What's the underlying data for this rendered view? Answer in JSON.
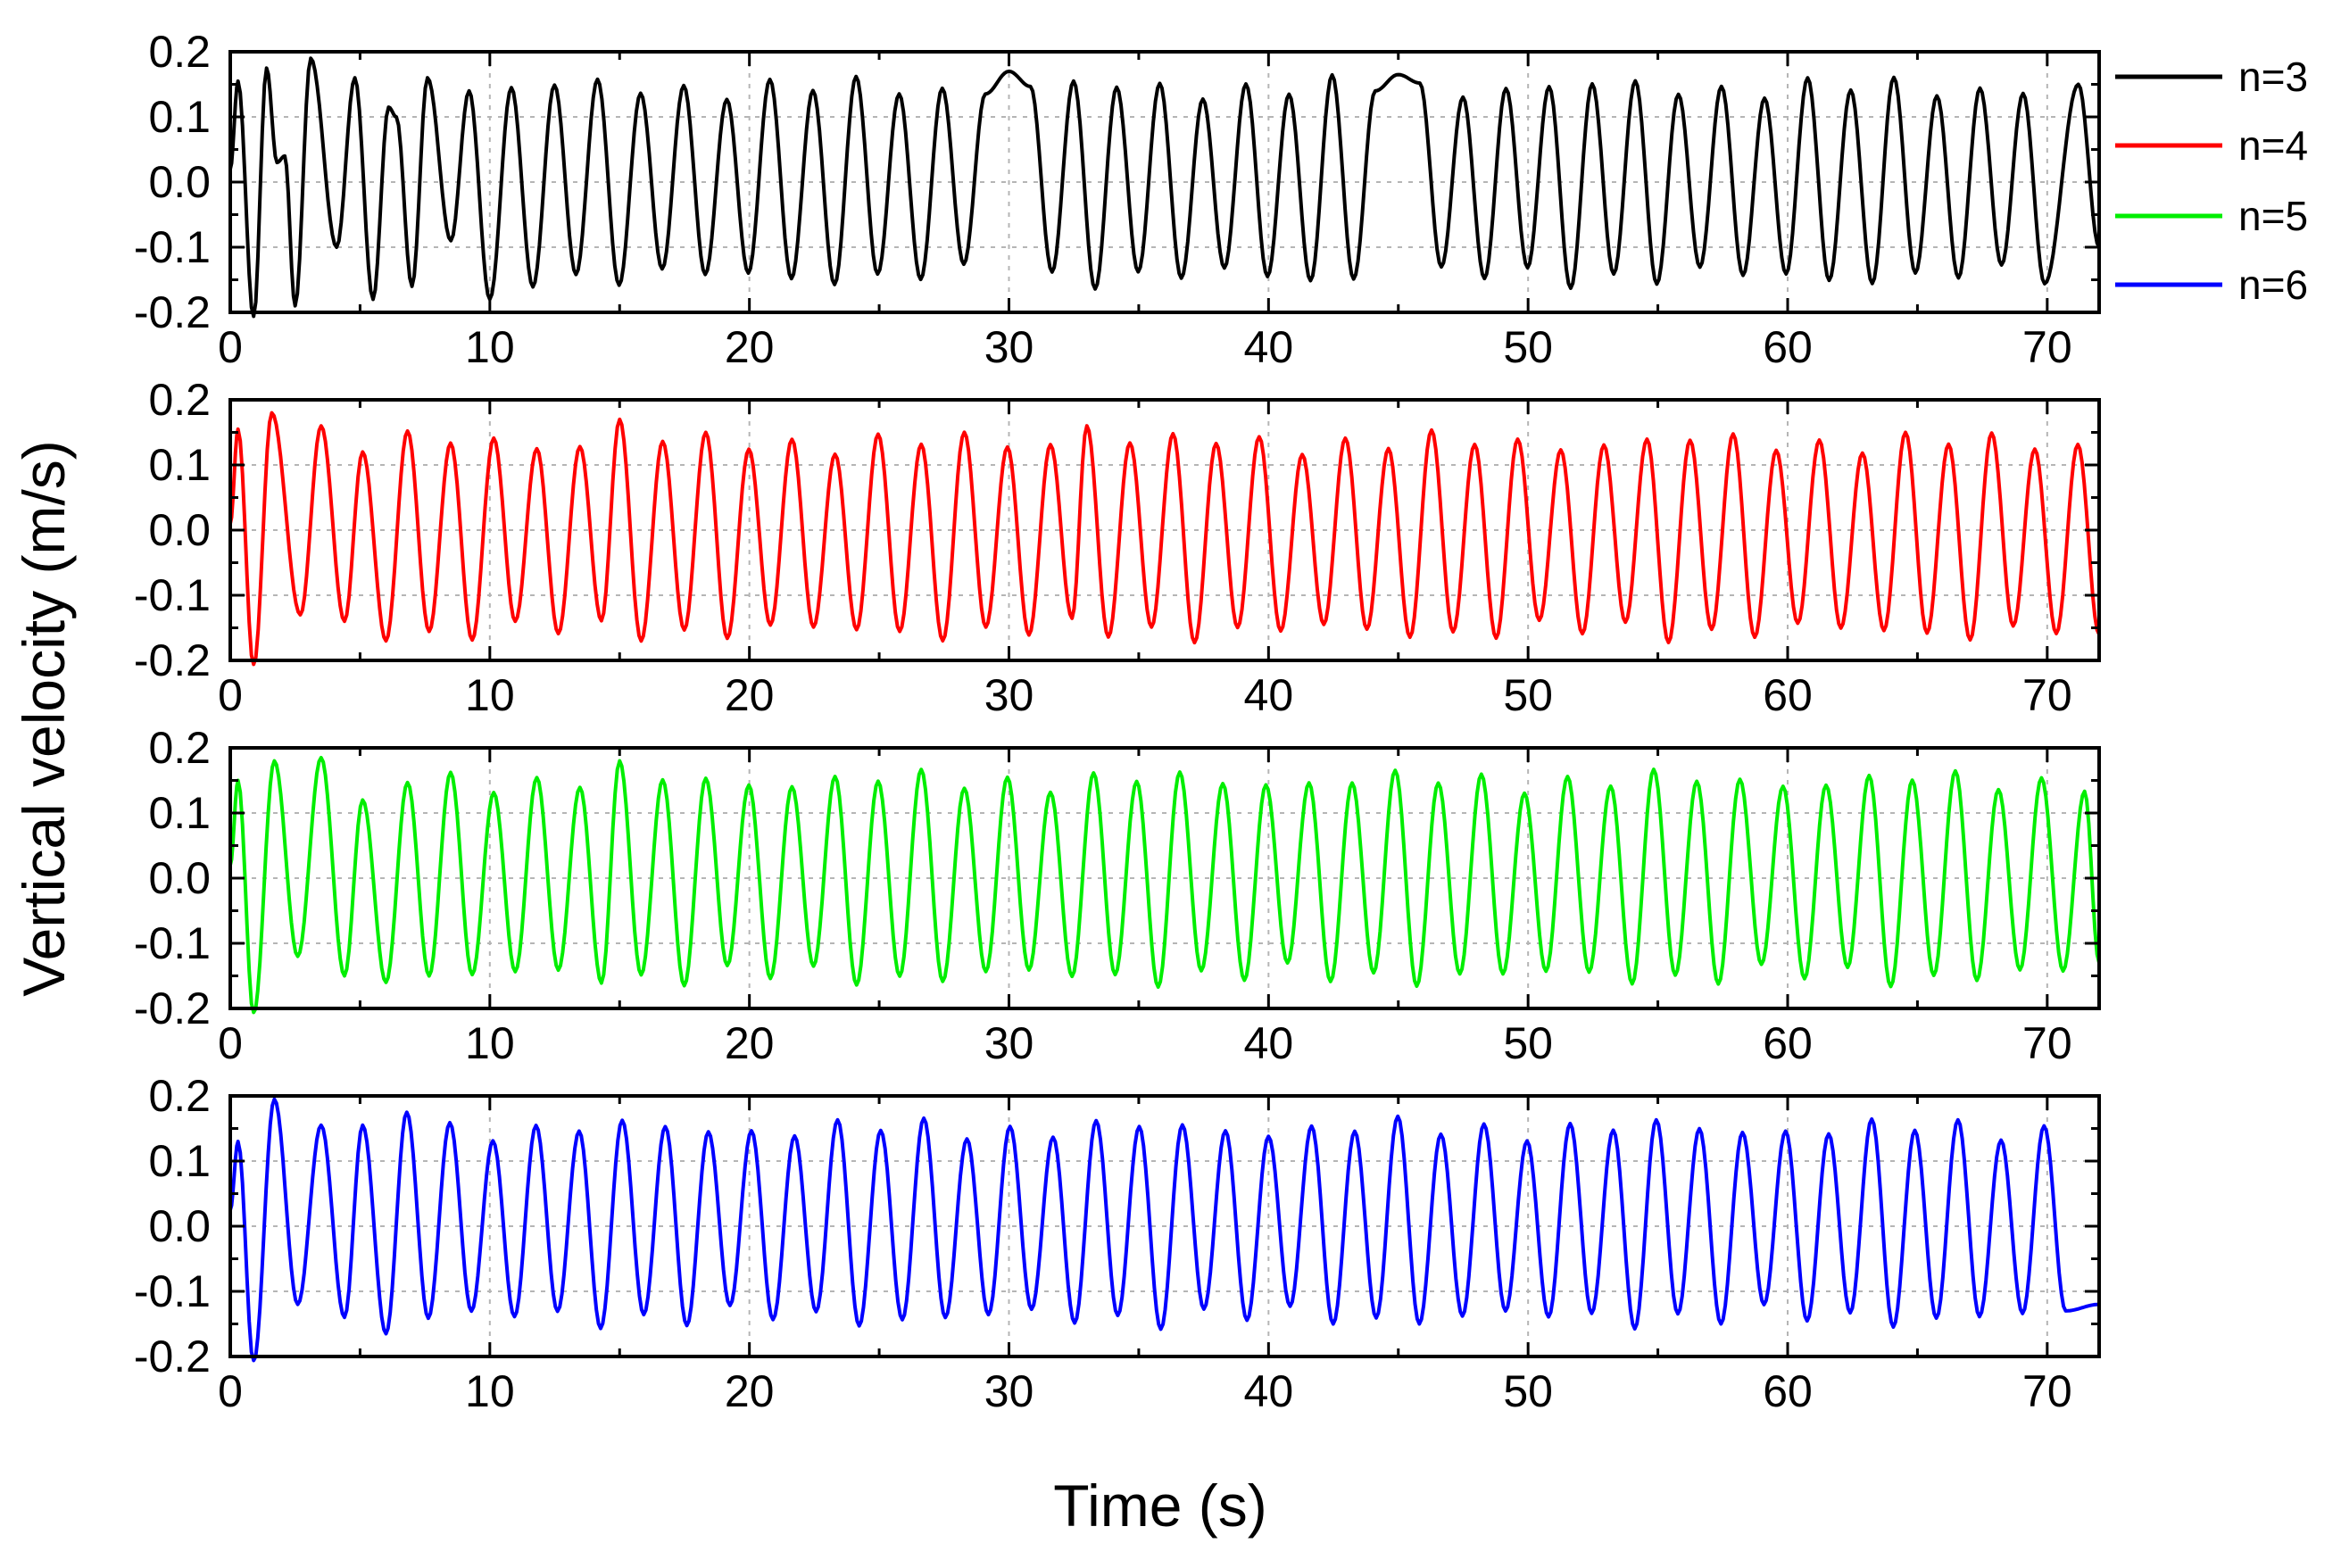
{
  "figure": {
    "ylabel": "Vertical velocity (m/s)",
    "xlabel": "Time (s)"
  },
  "legend": [
    {
      "label": "n=3",
      "color": "#000000"
    },
    {
      "label": "n=4",
      "color": "#ff0000"
    },
    {
      "label": "n=5",
      "color": "#00ee00"
    },
    {
      "label": "n=6",
      "color": "#0000ff"
    }
  ],
  "chart_data": [
    {
      "type": "line",
      "series_name": "n=3",
      "color": "#000000",
      "xlim": [
        0,
        72
      ],
      "ylim": [
        -0.2,
        0.2
      ],
      "xticks": [
        0,
        10,
        20,
        30,
        40,
        50,
        60,
        70
      ],
      "yticks": [
        -0.2,
        -0.1,
        0.0,
        0.1,
        0.2
      ],
      "xtick_labels": [
        "0",
        "10",
        "20",
        "30",
        "40",
        "50",
        "60",
        "70"
      ],
      "ytick_labels": [
        "-0.2",
        "-0.1",
        "0.0",
        "0.1",
        "0.2"
      ],
      "grid": true,
      "period": 1.66,
      "mean": 0.0,
      "amplitude": 0.145,
      "peaks": [
        {
          "t": 0.3,
          "v": 0.155
        },
        {
          "t": 0.9,
          "v": -0.21
        },
        {
          "t": 1.4,
          "v": 0.175
        },
        {
          "t": 1.8,
          "v": 0.03
        },
        {
          "t": 2.1,
          "v": 0.04
        },
        {
          "t": 2.5,
          "v": -0.19
        },
        {
          "t": 3.1,
          "v": 0.19
        },
        {
          "t": 4.1,
          "v": -0.1
        },
        {
          "t": 4.8,
          "v": 0.16
        },
        {
          "t": 5.5,
          "v": -0.18
        },
        {
          "t": 6.1,
          "v": 0.115
        },
        {
          "t": 6.4,
          "v": 0.1
        },
        {
          "t": 7.0,
          "v": -0.16
        },
        {
          "t": 7.6,
          "v": 0.16
        },
        {
          "t": 8.5,
          "v": -0.09
        },
        {
          "t": 9.2,
          "v": 0.14
        },
        {
          "t": 10.0,
          "v": -0.18
        },
        {
          "t": 30.0,
          "v": 0.17
        },
        {
          "t": 45.0,
          "v": 0.165
        },
        {
          "t": 71.2,
          "v": 0.15
        },
        {
          "t": 72.0,
          "v": -0.1
        }
      ]
    },
    {
      "type": "line",
      "series_name": "n=4",
      "color": "#ff0000",
      "xlim": [
        0,
        72
      ],
      "ylim": [
        -0.2,
        0.2
      ],
      "xticks": [
        0,
        10,
        20,
        30,
        40,
        50,
        60,
        70
      ],
      "yticks": [
        -0.2,
        -0.1,
        0.0,
        0.1,
        0.2
      ],
      "xtick_labels": [
        "0",
        "10",
        "20",
        "30",
        "40",
        "50",
        "60",
        "70"
      ],
      "ytick_labels": [
        "-0.2",
        "-0.1",
        "0.0",
        "0.1",
        "0.2"
      ],
      "grid": true,
      "period": 1.66,
      "mean": -0.01,
      "amplitude": 0.145,
      "peaks": [
        {
          "t": 0.3,
          "v": 0.155
        },
        {
          "t": 0.9,
          "v": -0.21
        },
        {
          "t": 1.6,
          "v": 0.18
        },
        {
          "t": 2.7,
          "v": -0.13
        },
        {
          "t": 3.5,
          "v": 0.16
        },
        {
          "t": 4.4,
          "v": -0.14
        },
        {
          "t": 5.1,
          "v": 0.12
        },
        {
          "t": 6.0,
          "v": -0.17
        },
        {
          "t": 15.0,
          "v": 0.17
        },
        {
          "t": 33.0,
          "v": 0.16
        },
        {
          "t": 72.0,
          "v": -0.16
        }
      ]
    },
    {
      "type": "line",
      "series_name": "n=5",
      "color": "#00ee00",
      "xlim": [
        0,
        72
      ],
      "ylim": [
        -0.2,
        0.2
      ],
      "xticks": [
        0,
        10,
        20,
        30,
        40,
        50,
        60,
        70
      ],
      "yticks": [
        -0.2,
        -0.1,
        0.0,
        0.1,
        0.2
      ],
      "xtick_labels": [
        "0",
        "10",
        "20",
        "30",
        "40",
        "50",
        "60",
        "70"
      ],
      "ytick_labels": [
        "-0.2",
        "-0.1",
        "0.0",
        "0.1",
        "0.2"
      ],
      "grid": true,
      "period": 1.66,
      "mean": 0.0,
      "amplitude": 0.15,
      "peaks": [
        {
          "t": 0.3,
          "v": 0.15
        },
        {
          "t": 0.9,
          "v": -0.21
        },
        {
          "t": 1.7,
          "v": 0.18
        },
        {
          "t": 2.6,
          "v": -0.12
        },
        {
          "t": 3.5,
          "v": 0.185
        },
        {
          "t": 4.4,
          "v": -0.15
        },
        {
          "t": 5.1,
          "v": 0.12
        },
        {
          "t": 6.0,
          "v": -0.16
        },
        {
          "t": 15.0,
          "v": 0.18
        },
        {
          "t": 72.0,
          "v": -0.13
        }
      ]
    },
    {
      "type": "line",
      "series_name": "n=6",
      "color": "#0000ff",
      "xlim": [
        0,
        72
      ],
      "ylim": [
        -0.2,
        0.2
      ],
      "xticks": [
        0,
        10,
        20,
        30,
        40,
        50,
        60,
        70
      ],
      "yticks": [
        -0.2,
        -0.1,
        0.0,
        0.1,
        0.2
      ],
      "xtick_labels": [
        "0",
        "10",
        "20",
        "30",
        "40",
        "50",
        "60",
        "70"
      ],
      "ytick_labels": [
        "-0.2",
        "-0.1",
        "0.0",
        "0.1",
        "0.2"
      ],
      "grid": true,
      "period": 1.66,
      "mean": 0.005,
      "amplitude": 0.145,
      "peaks": [
        {
          "t": 0.3,
          "v": 0.13
        },
        {
          "t": 0.9,
          "v": -0.21
        },
        {
          "t": 1.7,
          "v": 0.195
        },
        {
          "t": 2.6,
          "v": -0.12
        },
        {
          "t": 3.5,
          "v": 0.155
        },
        {
          "t": 4.4,
          "v": -0.14
        },
        {
          "t": 5.1,
          "v": 0.155
        },
        {
          "t": 6.0,
          "v": -0.165
        },
        {
          "t": 6.8,
          "v": 0.175
        },
        {
          "t": 72.0,
          "v": -0.12
        }
      ]
    }
  ]
}
